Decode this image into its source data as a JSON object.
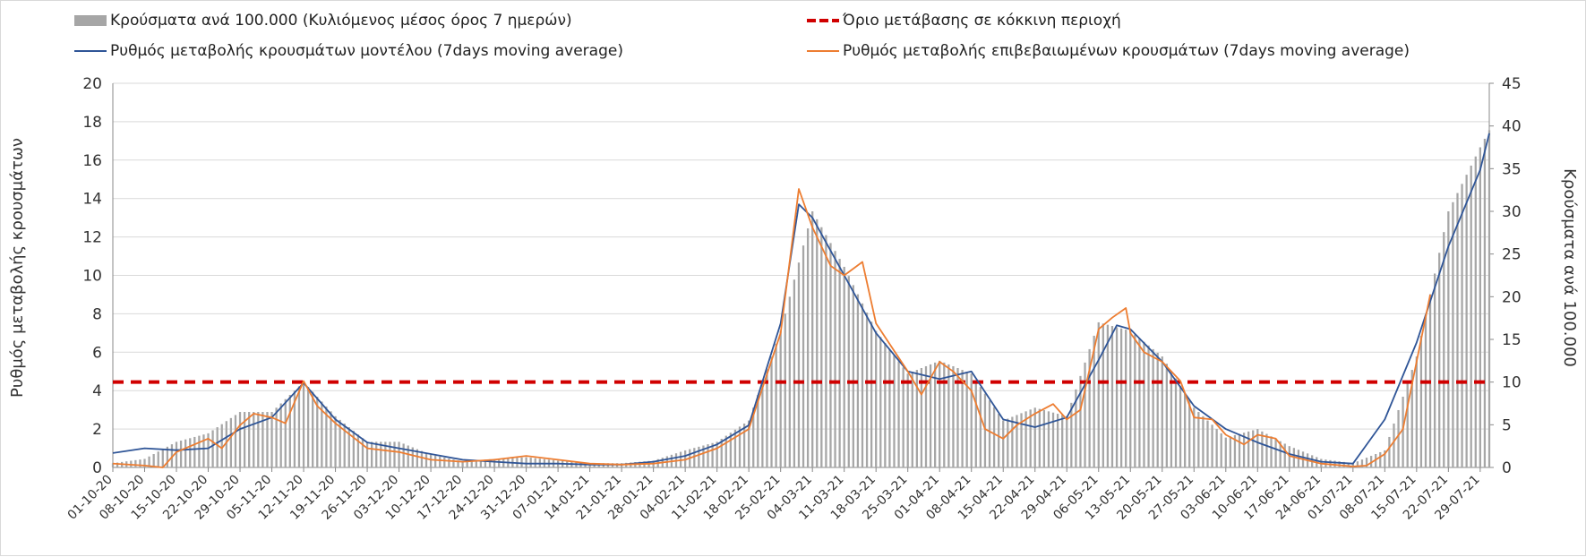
{
  "colors": {
    "bars": "#a6a6a6",
    "model_line": "#2f5597",
    "confirmed_line": "#ed7d31",
    "threshold": "#d00000",
    "grid": "#d9d9d9"
  },
  "legend": {
    "bars": "Κρούσματα ανά 100.000 (Κυλιόμενος μέσος όρος 7 ημερών)",
    "threshold": "Όριο μετάβασης σε κόκκινη περιοχή",
    "model": "Ρυθμός μεταβολής κρουσμάτων μοντέλου (7days moving average)",
    "confirmed": "Ρυθμός μεταβολής επιβεβαιωμένων κρουσμάτων (7days moving average)"
  },
  "chart_data": {
    "type": "bar",
    "combo": "bar+line",
    "ylabel": "Ρυθμός μεταβολής κρουσμάτων",
    "y2label": "Κρούσματα ανά 100.000",
    "ylim": [
      0,
      20
    ],
    "y2lim": [
      0,
      45
    ],
    "yticks": [
      "0",
      "2",
      "4",
      "6",
      "8",
      "10",
      "12",
      "14",
      "16",
      "18",
      "20"
    ],
    "y2ticks": [
      "0",
      "5",
      "10",
      "15",
      "20",
      "25",
      "30",
      "35",
      "40",
      "45"
    ],
    "grid": true,
    "legend_position": "top",
    "x_start": "2020-10-01",
    "x_end": "2021-07-31",
    "xtick_labels": [
      "01-10-20",
      "08-10-20",
      "15-10-20",
      "22-10-20",
      "29-10-20",
      "05-11-20",
      "12-11-20",
      "19-11-20",
      "26-11-20",
      "03-12-20",
      "10-12-20",
      "17-12-20",
      "24-12-20",
      "31-12-20",
      "07-01-21",
      "14-01-21",
      "21-01-21",
      "28-01-21",
      "04-02-21",
      "11-02-21",
      "18-02-21",
      "25-02-21",
      "04-03-21",
      "11-03-21",
      "18-03-21",
      "25-03-21",
      "01-04-21",
      "08-04-21",
      "15-04-21",
      "22-04-21",
      "29-04-21",
      "06-05-21",
      "13-05-21",
      "20-05-21",
      "27-05-21",
      "03-06-21",
      "10-06-21",
      "17-06-21",
      "24-06-21",
      "01-07-21",
      "08-07-21",
      "15-07-21",
      "22-07-21",
      "29-07-21"
    ],
    "threshold": {
      "name": "Όριο μετάβασης σε κόκκινη περιοχή",
      "axis": "y2",
      "value": 10
    },
    "series": [
      {
        "name": "Κρούσματα ανά 100.000 (Κυλιόμενος μέσος όρος 7 ημερών)",
        "type": "bar",
        "axis": "y2",
        "x": [
          "2020-10-01",
          "2020-10-08",
          "2020-10-15",
          "2020-10-22",
          "2020-10-29",
          "2020-11-05",
          "2020-11-12",
          "2020-11-19",
          "2020-11-26",
          "2020-12-03",
          "2020-12-10",
          "2020-12-17",
          "2020-12-24",
          "2020-12-31",
          "2021-01-07",
          "2021-01-14",
          "2021-01-21",
          "2021-01-28",
          "2021-02-04",
          "2021-02-11",
          "2021-02-18",
          "2021-02-25",
          "2021-03-04",
          "2021-03-11",
          "2021-03-18",
          "2021-03-25",
          "2021-04-01",
          "2021-04-08",
          "2021-04-15",
          "2021-04-22",
          "2021-04-29",
          "2021-05-06",
          "2021-05-13",
          "2021-05-20",
          "2021-05-27",
          "2021-06-03",
          "2021-06-10",
          "2021-06-17",
          "2021-06-24",
          "2021-07-01",
          "2021-07-08",
          "2021-07-15",
          "2021-07-22",
          "2021-07-29",
          "2021-07-31"
        ],
        "values": [
          0.5,
          1.0,
          3.0,
          4.0,
          6.5,
          6.5,
          10.0,
          6.0,
          3.0,
          3.0,
          1.5,
          0.7,
          1.0,
          1.2,
          0.8,
          0.5,
          0.5,
          0.8,
          2.0,
          3.0,
          5.5,
          16.0,
          30.0,
          23.5,
          16.0,
          11.0,
          12.5,
          11.0,
          5.5,
          7.0,
          6.0,
          17.0,
          16.0,
          13.0,
          7.0,
          3.5,
          4.5,
          2.5,
          1.0,
          0.5,
          2.0,
          13.0,
          30.0,
          37.5,
          39.5
        ]
      },
      {
        "name": "Ρυθμός μεταβολής κρουσμάτων μοντέλου (7days moving average)",
        "type": "line",
        "axis": "y",
        "x": [
          "2020-10-01",
          "2020-10-08",
          "2020-10-15",
          "2020-10-22",
          "2020-10-29",
          "2020-11-05",
          "2020-11-12",
          "2020-11-19",
          "2020-11-26",
          "2020-12-03",
          "2020-12-10",
          "2020-12-17",
          "2020-12-24",
          "2020-12-31",
          "2021-01-07",
          "2021-01-14",
          "2021-01-21",
          "2021-01-28",
          "2021-02-04",
          "2021-02-11",
          "2021-02-18",
          "2021-02-25",
          "2021-03-01",
          "2021-03-04",
          "2021-03-11",
          "2021-03-18",
          "2021-03-25",
          "2021-04-01",
          "2021-04-08",
          "2021-04-15",
          "2021-04-22",
          "2021-04-29",
          "2021-05-06",
          "2021-05-10",
          "2021-05-13",
          "2021-05-20",
          "2021-05-27",
          "2021-06-03",
          "2021-06-10",
          "2021-06-17",
          "2021-06-24",
          "2021-07-01",
          "2021-07-08",
          "2021-07-15",
          "2021-07-22",
          "2021-07-29",
          "2021-07-31"
        ],
        "values": [
          0.75,
          1.0,
          0.9,
          1.0,
          2.0,
          2.6,
          4.4,
          2.5,
          1.3,
          1.0,
          0.7,
          0.4,
          0.3,
          0.2,
          0.2,
          0.15,
          0.15,
          0.3,
          0.6,
          1.2,
          2.2,
          7.5,
          13.7,
          13.0,
          10.0,
          7.0,
          5.0,
          4.6,
          5.0,
          2.5,
          2.1,
          2.6,
          5.6,
          7.4,
          7.2,
          5.5,
          3.2,
          2.0,
          1.3,
          0.7,
          0.3,
          0.2,
          2.5,
          6.5,
          11.5,
          15.5,
          17.4
        ]
      },
      {
        "name": "Ρυθμός μεταβολής επιβεβαιωμένων κρουσμάτων (7days moving average)",
        "type": "line",
        "axis": "y",
        "x": [
          "2020-10-01",
          "2020-10-08",
          "2020-10-12",
          "2020-10-15",
          "2020-10-22",
          "2020-10-25",
          "2020-10-29",
          "2020-11-01",
          "2020-11-05",
          "2020-11-08",
          "2020-11-12",
          "2020-11-15",
          "2020-11-19",
          "2020-11-26",
          "2020-12-03",
          "2020-12-10",
          "2020-12-17",
          "2020-12-24",
          "2020-12-31",
          "2021-01-07",
          "2021-01-14",
          "2021-01-21",
          "2021-01-28",
          "2021-02-04",
          "2021-02-11",
          "2021-02-18",
          "2021-02-25",
          "2021-03-01",
          "2021-03-04",
          "2021-03-08",
          "2021-03-11",
          "2021-03-15",
          "2021-03-18",
          "2021-03-25",
          "2021-03-28",
          "2021-04-01",
          "2021-04-04",
          "2021-04-08",
          "2021-04-11",
          "2021-04-15",
          "2021-04-18",
          "2021-04-22",
          "2021-04-26",
          "2021-04-29",
          "2021-05-02",
          "2021-05-06",
          "2021-05-09",
          "2021-05-12",
          "2021-05-13",
          "2021-05-16",
          "2021-05-20",
          "2021-05-24",
          "2021-05-27",
          "2021-05-31",
          "2021-06-03",
          "2021-06-07",
          "2021-06-10",
          "2021-06-14",
          "2021-06-17",
          "2021-06-24",
          "2021-07-01",
          "2021-07-04",
          "2021-07-08",
          "2021-07-12",
          "2021-07-15",
          "2021-07-18"
        ],
        "values": [
          0.2,
          0.1,
          0.0,
          0.8,
          1.5,
          1.0,
          2.2,
          2.8,
          2.6,
          2.3,
          4.5,
          3.2,
          2.3,
          1.0,
          0.8,
          0.4,
          0.3,
          0.4,
          0.6,
          0.4,
          0.2,
          0.15,
          0.2,
          0.4,
          1.0,
          2.0,
          7.0,
          14.5,
          12.5,
          10.5,
          10.0,
          10.7,
          7.5,
          5.0,
          3.8,
          5.5,
          5.0,
          4.0,
          2.0,
          1.5,
          2.2,
          2.8,
          3.3,
          2.5,
          3.0,
          7.2,
          7.8,
          8.3,
          7.0,
          6.0,
          5.5,
          4.5,
          2.6,
          2.5,
          1.7,
          1.2,
          1.7,
          1.5,
          0.6,
          0.2,
          0.05,
          0.1,
          0.7,
          2.0,
          5.5,
          9.0
        ]
      }
    ]
  }
}
